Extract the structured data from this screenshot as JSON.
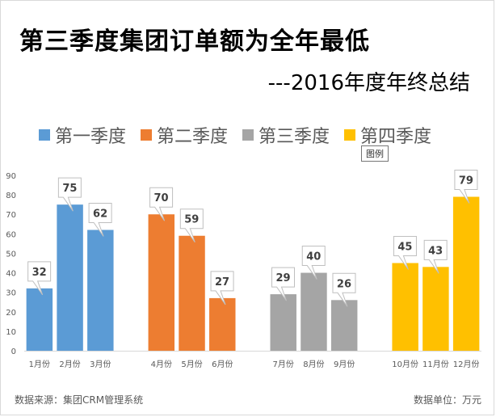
{
  "title": "第三季度集团订单额为全年最低",
  "subtitle": "---2016年度年终总结",
  "legend_tooltip": "图例",
  "footer": {
    "source": "数据来源：集团CRM管理系统",
    "unit": "数据单位：万元"
  },
  "chart_data": {
    "type": "bar",
    "title": "第三季度集团订单额为全年最低",
    "subtitle": "---2016年度年终总结",
    "ylim": [
      0,
      90
    ],
    "yticks": [
      0,
      10,
      20,
      30,
      40,
      50,
      60,
      70,
      80,
      90
    ],
    "grid": false,
    "legend_position": "top",
    "series": [
      {
        "name": "第一季度",
        "color": "#5B9BD5",
        "categories": [
          "1月份",
          "2月份",
          "3月份"
        ],
        "values": [
          32,
          75,
          62
        ]
      },
      {
        "name": "第二季度",
        "color": "#ED7D31",
        "categories": [
          "4月份",
          "5月份",
          "6月份"
        ],
        "values": [
          70,
          59,
          27
        ]
      },
      {
        "name": "第三季度",
        "color": "#A5A5A5",
        "categories": [
          "7月份",
          "8月份",
          "9月份"
        ],
        "values": [
          29,
          40,
          26
        ]
      },
      {
        "name": "第四季度",
        "color": "#FFC000",
        "categories": [
          "10月份",
          "11月份",
          "12月份"
        ],
        "values": [
          45,
          43,
          79
        ]
      }
    ]
  }
}
